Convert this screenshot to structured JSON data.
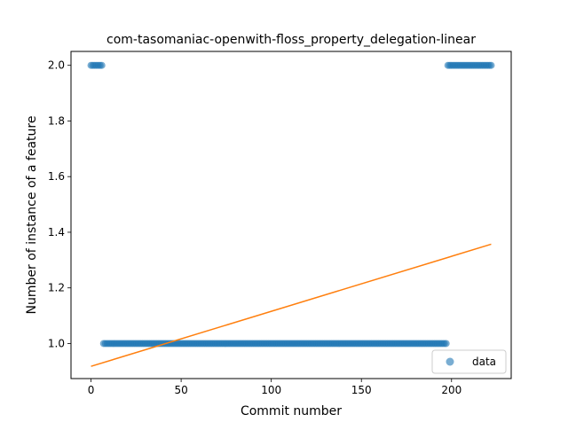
{
  "chart_data": {
    "type": "scatter",
    "title": "com-tasomaniac-openwith-floss_property_delegation-linear",
    "xlabel": "Commit number",
    "ylabel": "Number of instance of a feature",
    "xlim": [
      -11.1,
      233.1
    ],
    "ylim": [
      0.874,
      2.05
    ],
    "xticks": [
      0,
      50,
      100,
      150,
      200
    ],
    "yticks": [
      1.0,
      1.2,
      1.4,
      1.6,
      1.8,
      2.0
    ],
    "xtick_labels": [
      "0",
      "50",
      "100",
      "150",
      "200"
    ],
    "ytick_labels": [
      "1.0",
      "1.2",
      "1.4",
      "1.6",
      "1.8",
      "2.0"
    ],
    "grid": false,
    "legend": {
      "placement": "lower-right",
      "entries": [
        "data"
      ]
    },
    "series": [
      {
        "name": "data",
        "kind": "points",
        "color": "#1f77b4",
        "segments": [
          {
            "x_from": 0,
            "x_to": 6,
            "y": 2
          },
          {
            "x_from": 7,
            "x_to": 197,
            "y": 1
          },
          {
            "x_from": 198,
            "x_to": 222,
            "y": 2
          }
        ]
      },
      {
        "name": "",
        "kind": "line",
        "color": "#ff7f0e",
        "x": [
          0,
          222
        ],
        "y": [
          0.918,
          1.357
        ]
      }
    ]
  }
}
